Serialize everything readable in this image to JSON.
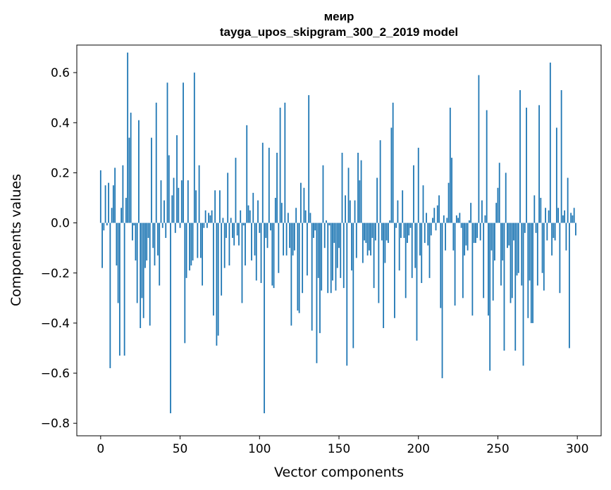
{
  "chart_data": {
    "type": "bar",
    "title_lines": [
      "меир",
      "tayga_upos_skipgram_300_2_2019 model"
    ],
    "xlabel": "Vector components",
    "ylabel": "Components values",
    "xlim": [
      -15,
      315
    ],
    "ylim": [
      -0.85,
      0.71
    ],
    "xticks": [
      0,
      50,
      100,
      150,
      200,
      250,
      300
    ],
    "xtick_labels": [
      "0",
      "50",
      "100",
      "150",
      "200",
      "250",
      "300"
    ],
    "yticks": [
      0.6,
      0.4,
      0.2,
      0.0,
      -0.2,
      -0.4,
      -0.6,
      -0.8
    ],
    "ytick_labels": [
      "0.6",
      "0.4",
      "0.2",
      "0.0",
      "−0.2",
      "−0.4",
      "−0.6",
      "−0.8"
    ],
    "bar_color": "#1f77b4",
    "bar_width": 0.8,
    "values": [
      0.21,
      -0.18,
      -0.03,
      0.15,
      -0.01,
      0.16,
      -0.58,
      0.06,
      0.15,
      0.22,
      -0.17,
      -0.32,
      -0.53,
      0.06,
      0.23,
      -0.53,
      0.1,
      0.68,
      0.34,
      0.44,
      -0.07,
      -0.01,
      -0.15,
      -0.32,
      0.41,
      -0.42,
      -0.3,
      -0.38,
      -0.18,
      -0.15,
      -0.06,
      -0.41,
      0.34,
      -0.1,
      -0.17,
      0.48,
      -0.13,
      -0.25,
      0.17,
      -0.02,
      0.09,
      -0.06,
      0.56,
      0.27,
      -0.76,
      0.11,
      0.18,
      -0.04,
      0.35,
      0.14,
      -0.02,
      0.17,
      0.56,
      -0.48,
      -0.22,
      0.17,
      -0.19,
      -0.17,
      -0.15,
      0.6,
      0.13,
      -0.14,
      0.23,
      -0.14,
      -0.25,
      -0.02,
      0.05,
      -0.02,
      0.04,
      0.03,
      0.05,
      -0.37,
      0.13,
      -0.49,
      -0.45,
      0.13,
      -0.29,
      0.02,
      -0.18,
      -0.06,
      0.2,
      -0.17,
      0.02,
      -0.06,
      -0.09,
      0.26,
      -0.05,
      -0.09,
      0.05,
      -0.32,
      -0.01,
      -0.17,
      0.39,
      0.07,
      0.05,
      -0.15,
      0.12,
      -0.13,
      -0.23,
      0.09,
      -0.04,
      -0.24,
      0.32,
      -0.76,
      -0.06,
      -0.1,
      0.3,
      -0.03,
      -0.25,
      -0.26,
      0.1,
      0.28,
      -0.2,
      0.46,
      0.08,
      -0.13,
      0.48,
      -0.13,
      0.04,
      -0.1,
      -0.41,
      -0.13,
      -0.11,
      0.06,
      -0.35,
      -0.36,
      0.16,
      -0.28,
      0.14,
      0.05,
      -0.21,
      0.51,
      0.04,
      -0.43,
      -0.06,
      -0.03,
      -0.56,
      -0.22,
      -0.44,
      -0.27,
      0.23,
      -0.1,
      0.01,
      -0.28,
      -0.01,
      -0.28,
      -0.23,
      -0.08,
      -0.27,
      -0.18,
      -0.1,
      -0.22,
      0.28,
      -0.26,
      0.11,
      -0.57,
      0.22,
      0.09,
      -0.19,
      -0.5,
      0.09,
      -0.14,
      0.28,
      0.17,
      0.25,
      -0.16,
      -0.07,
      -0.08,
      -0.13,
      -0.11,
      -0.13,
      -0.06,
      -0.26,
      -0.07,
      0.18,
      -0.32,
      0.33,
      -0.07,
      -0.42,
      -0.16,
      -0.07,
      -0.08,
      0.01,
      0.38,
      0.48,
      -0.38,
      -0.02,
      0.09,
      -0.19,
      -0.06,
      0.13,
      -0.06,
      -0.3,
      -0.08,
      -0.05,
      -0.02,
      -0.22,
      0.23,
      -0.18,
      -0.47,
      0.3,
      -0.13,
      -0.24,
      0.15,
      -0.08,
      0.04,
      -0.09,
      -0.22,
      -0.05,
      0.02,
      0.06,
      -0.03,
      0.07,
      0.11,
      -0.34,
      -0.62,
      0.03,
      -0.11,
      0.02,
      0.16,
      0.46,
      0.26,
      -0.11,
      -0.33,
      0.03,
      0.02,
      0.04,
      -0.02,
      -0.3,
      -0.13,
      -0.09,
      -0.11,
      0.01,
      0.08,
      -0.37,
      -0.08,
      -0.08,
      -0.06,
      0.59,
      -0.07,
      0.09,
      -0.3,
      0.03,
      0.45,
      -0.37,
      -0.59,
      -0.11,
      -0.31,
      -0.15,
      0.08,
      0.14,
      0.24,
      -0.25,
      -0.15,
      -0.51,
      0.2,
      -0.1,
      -0.09,
      -0.32,
      -0.3,
      -0.07,
      -0.51,
      -0.21,
      -0.2,
      0.53,
      -0.25,
      -0.57,
      -0.04,
      0.46,
      -0.38,
      -0.23,
      -0.4,
      -0.4,
      0.11,
      -0.04,
      -0.25,
      0.47,
      0.1,
      -0.2,
      -0.27,
      0.06,
      -0.07,
      0.05,
      0.64,
      -0.13,
      -0.06,
      -0.07,
      0.38,
      0.06,
      -0.28,
      0.53,
      0.03,
      0.05,
      -0.11,
      0.18,
      -0.5,
      0.04,
      0.03,
      0.06,
      -0.05
    ]
  }
}
